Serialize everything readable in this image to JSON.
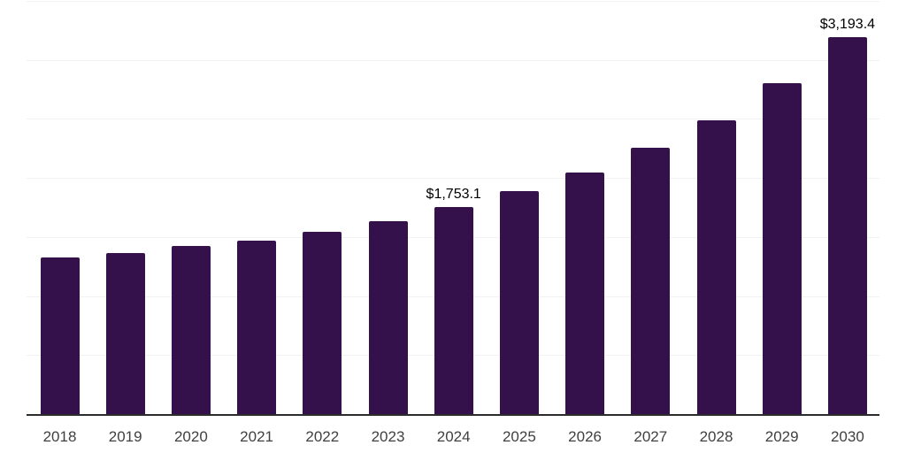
{
  "chart_data": {
    "type": "bar",
    "title": "",
    "xlabel": "",
    "ylabel": "",
    "categories": [
      "2018",
      "2019",
      "2020",
      "2021",
      "2022",
      "2023",
      "2024",
      "2025",
      "2026",
      "2027",
      "2028",
      "2029",
      "2030"
    ],
    "values": [
      1328,
      1363,
      1422,
      1472,
      1546,
      1634,
      1753.1,
      1887,
      2044,
      2253,
      2492,
      2805,
      3193.4
    ],
    "value_labels": {
      "2024": "$1,753.1",
      "2030": "$3,193.4"
    },
    "ylim": [
      0,
      3500
    ],
    "gridline_interval": 500,
    "grid": "horizontal",
    "legend": "none",
    "colors": {
      "bar": "#35114C",
      "gridline": "#f2f2f2",
      "axis_line": "#2b2b2b",
      "tick_label": "#404040",
      "value_label": "#000000",
      "background": "#ffffff"
    }
  }
}
